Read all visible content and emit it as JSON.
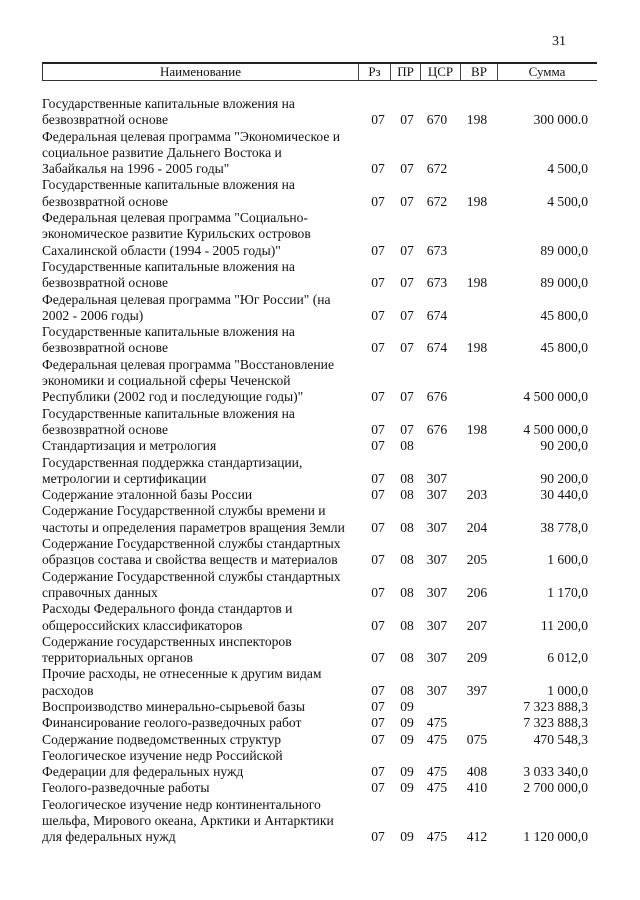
{
  "page_number": "31",
  "header": {
    "name": "Наименование",
    "rz": "Рз",
    "pr": "ПР",
    "csr": "ЦСР",
    "vr": "ВР",
    "sum": "Сумма"
  },
  "rows": [
    {
      "name": [
        "Государственные капитальные вложения на",
        "безвозвратной основе"
      ],
      "rz": "07",
      "pr": "07",
      "csr": "670",
      "vr": "198",
      "sum": "300 000.0"
    },
    {
      "name": [
        "Федеральная целевая программа \"Экономическое и",
        "социальное развитие Дальнего Востока и",
        "Забайкалья на 1996 - 2005 годы\""
      ],
      "rz": "07",
      "pr": "07",
      "csr": "672",
      "vr": "",
      "sum": "4 500,0"
    },
    {
      "name": [
        "Государственные капитальные вложения на",
        "безвозвратной основе"
      ],
      "rz": "07",
      "pr": "07",
      "csr": "672",
      "vr": "198",
      "sum": "4 500,0"
    },
    {
      "name": [
        "Федеральная целевая программа \"Социально-",
        "экономическое развитие Курильских островов",
        "Сахалинской области (1994 - 2005 годы)\""
      ],
      "rz": "07",
      "pr": "07",
      "csr": "673",
      "vr": "",
      "sum": "89 000,0"
    },
    {
      "name": [
        "Государственные капитальные вложения на",
        "безвозвратной основе"
      ],
      "rz": "07",
      "pr": "07",
      "csr": "673",
      "vr": "198",
      "sum": "89 000,0"
    },
    {
      "name": [
        "Федеральная целевая программа \"Юг России\" (на",
        "2002 - 2006 годы)"
      ],
      "rz": "07",
      "pr": "07",
      "csr": "674",
      "vr": "",
      "sum": "45 800,0"
    },
    {
      "name": [
        "Государственные капитальные вложения на",
        "безвозвратной основе"
      ],
      "rz": "07",
      "pr": "07",
      "csr": "674",
      "vr": "198",
      "sum": "45 800,0"
    },
    {
      "name": [
        "Федеральная целевая программа \"Восстановление",
        "экономики и социальной сферы Чеченской",
        "Республики (2002 год и последующие годы)\""
      ],
      "rz": "07",
      "pr": "07",
      "csr": "676",
      "vr": "",
      "sum": "4 500 000,0"
    },
    {
      "name": [
        "Государственные капитальные вложения на",
        "безвозвратной основе"
      ],
      "rz": "07",
      "pr": "07",
      "csr": "676",
      "vr": "198",
      "sum": "4 500 000,0"
    },
    {
      "name": [
        "Стандартизация и метрология"
      ],
      "rz": "07",
      "pr": "08",
      "csr": "",
      "vr": "",
      "sum": "90 200,0"
    },
    {
      "name": [
        "Государственная поддержка стандартизации,",
        "метрологии и сертификации"
      ],
      "rz": "07",
      "pr": "08",
      "csr": "307",
      "vr": "",
      "sum": "90 200,0"
    },
    {
      "name": [
        "Содержание эталонной базы России"
      ],
      "rz": "07",
      "pr": "08",
      "csr": "307",
      "vr": "203",
      "sum": "30 440,0"
    },
    {
      "name": [
        "Содержание Государственной службы времени и",
        "частоты и определения параметров вращения Земли"
      ],
      "rz": "07",
      "pr": "08",
      "csr": "307",
      "vr": "204",
      "sum": "38 778,0"
    },
    {
      "name": [
        "Содержание Государственной службы стандартных",
        "образцов состава и свойства веществ и материалов"
      ],
      "rz": "07",
      "pr": "08",
      "csr": "307",
      "vr": "205",
      "sum": "1 600,0"
    },
    {
      "name": [
        "Содержание Государственной службы стандартных",
        "справочных данных"
      ],
      "rz": "07",
      "pr": "08",
      "csr": "307",
      "vr": "206",
      "sum": "1 170,0"
    },
    {
      "name": [
        "Расходы Федерального фонда стандартов и",
        "общероссийских классификаторов"
      ],
      "rz": "07",
      "pr": "08",
      "csr": "307",
      "vr": "207",
      "sum": "11 200,0"
    },
    {
      "name": [
        "Содержание государственных инспекторов",
        "территориальных органов"
      ],
      "rz": "07",
      "pr": "08",
      "csr": "307",
      "vr": "209",
      "sum": "6 012,0"
    },
    {
      "name": [
        "Прочие расходы, не отнесенные к другим видам",
        "расходов"
      ],
      "rz": "07",
      "pr": "08",
      "csr": "307",
      "vr": "397",
      "sum": "1 000,0"
    },
    {
      "name": [
        "Воспроизводство минерально-сырьевой базы"
      ],
      "rz": "07",
      "pr": "09",
      "csr": "",
      "vr": "",
      "sum": "7 323 888,3"
    },
    {
      "name": [
        "Финансирование геолого-разведочных работ"
      ],
      "rz": "07",
      "pr": "09",
      "csr": "475",
      "vr": "",
      "sum": "7 323 888,3"
    },
    {
      "name": [
        "Содержание подведомственных структур"
      ],
      "rz": "07",
      "pr": "09",
      "csr": "475",
      "vr": "075",
      "sum": "470 548,3"
    },
    {
      "name": [
        "Геологическое изучение недр Российской",
        "Федерации для федеральных нужд"
      ],
      "rz": "07",
      "pr": "09",
      "csr": "475",
      "vr": "408",
      "sum": "3 033 340,0"
    },
    {
      "name": [
        "Геолого-разведочные работы"
      ],
      "rz": "07",
      "pr": "09",
      "csr": "475",
      "vr": "410",
      "sum": "2 700 000,0"
    },
    {
      "name": [
        "Геологическое изучение недр континентального",
        "шельфа, Мирового океана, Арктики и Антарктики",
        "для федеральных нужд"
      ],
      "rz": "07",
      "pr": "09",
      "csr": "475",
      "vr": "412",
      "sum": "1 120 000,0"
    }
  ]
}
